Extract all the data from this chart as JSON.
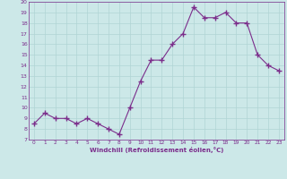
{
  "x": [
    0,
    1,
    2,
    3,
    4,
    5,
    6,
    7,
    8,
    9,
    10,
    11,
    12,
    13,
    14,
    15,
    16,
    17,
    18,
    19,
    20,
    21,
    22,
    23
  ],
  "y": [
    8.5,
    9.5,
    9.0,
    9.0,
    8.5,
    9.0,
    8.5,
    8.0,
    7.5,
    10.0,
    12.5,
    14.5,
    14.5,
    16.0,
    17.0,
    19.5,
    18.5,
    18.5,
    19.0,
    18.0,
    18.0,
    15.0,
    14.0,
    13.5
  ],
  "xlim": [
    -0.5,
    23.5
  ],
  "ylim": [
    7,
    20
  ],
  "yticks": [
    7,
    8,
    9,
    10,
    11,
    12,
    13,
    14,
    15,
    16,
    17,
    18,
    19,
    20
  ],
  "xticks": [
    0,
    1,
    2,
    3,
    4,
    5,
    6,
    7,
    8,
    9,
    10,
    11,
    12,
    13,
    14,
    15,
    16,
    17,
    18,
    19,
    20,
    21,
    22,
    23
  ],
  "xlabel": "Windchill (Refroidissement éolien,°C)",
  "line_color": "#7b2d8b",
  "marker": "+",
  "marker_size": 4,
  "bg_color": "#cce8e8",
  "grid_color": "#b0d4d4",
  "tick_color": "#7b2d8b",
  "label_color": "#7b2d8b"
}
